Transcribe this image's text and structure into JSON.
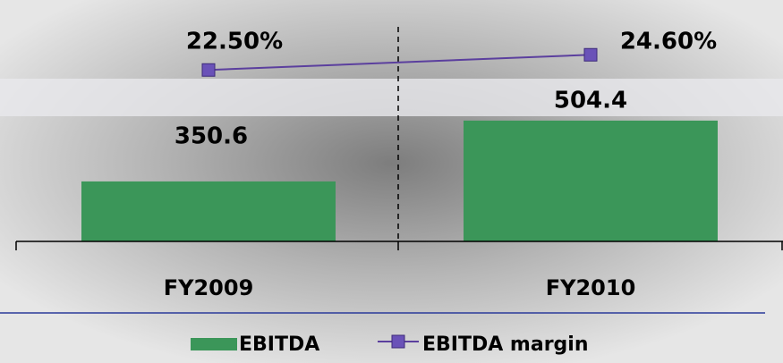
{
  "chart_data": {
    "type": "bar",
    "categories": [
      "FY2009",
      "FY2010"
    ],
    "series": [
      {
        "name": "EBITDA",
        "type": "bar",
        "color": "#3b9659",
        "values": [
          350.6,
          504.4
        ]
      },
      {
        "name": "EBITDA margin",
        "type": "line",
        "axis": "y2",
        "color": "#5b3f9e",
        "values": [
          22.5,
          24.6
        ],
        "value_labels": [
          "22.50%",
          "24.60%"
        ]
      }
    ],
    "ylim": [
      199,
      764
    ],
    "y2lim": [
      -1.2,
      29.7
    ],
    "legend": "bottom"
  }
}
